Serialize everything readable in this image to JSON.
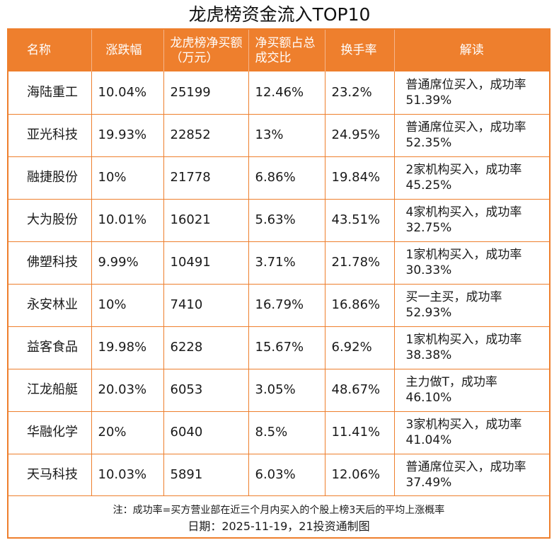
{
  "title": "龙虎榜资金流入TOP10",
  "columns": {
    "name": "名称",
    "change": "涨跌幅",
    "net_buy": "龙虎榜净买额（万元）",
    "ratio": "净买额占总成交比",
    "turnover": "换手率",
    "interpret": "解读"
  },
  "rows": [
    {
      "name": "海陆重工",
      "change": "10.04%",
      "net_buy": "25199",
      "ratio": "12.46%",
      "turnover": "23.2%",
      "interpret": "普通席位买入，成功率51.39%"
    },
    {
      "name": "亚光科技",
      "change": "19.93%",
      "net_buy": "22852",
      "ratio": "13%",
      "turnover": "24.95%",
      "interpret": "普通席位买入，成功率52.35%"
    },
    {
      "name": "融捷股份",
      "change": "10%",
      "net_buy": "21778",
      "ratio": "6.86%",
      "turnover": "19.84%",
      "interpret": "2家机构买入，成功率45.25%"
    },
    {
      "name": "大为股份",
      "change": "10.01%",
      "net_buy": "16021",
      "ratio": "5.63%",
      "turnover": "43.51%",
      "interpret": "4家机构买入，成功率32.75%"
    },
    {
      "name": "佛塑科技",
      "change": "9.99%",
      "net_buy": "10491",
      "ratio": "3.71%",
      "turnover": "21.78%",
      "interpret": "1家机构买入，成功率30.33%"
    },
    {
      "name": "永安林业",
      "change": "10%",
      "net_buy": "7410",
      "ratio": "16.79%",
      "turnover": "16.86%",
      "interpret": "买一主买，成功率52.93%"
    },
    {
      "name": "益客食品",
      "change": "19.98%",
      "net_buy": "6228",
      "ratio": "15.67%",
      "turnover": "6.92%",
      "interpret": "1家机构买入，成功率38.38%"
    },
    {
      "name": "江龙船艇",
      "change": "20.03%",
      "net_buy": "6053",
      "ratio": "3.05%",
      "turnover": "48.67%",
      "interpret": "主力做T，成功率46.10%"
    },
    {
      "name": "华融化学",
      "change": "20%",
      "net_buy": "6040",
      "ratio": "8.5%",
      "turnover": "11.41%",
      "interpret": "3家机构买入，成功率41.04%"
    },
    {
      "name": "天马科技",
      "change": "10.03%",
      "net_buy": "5891",
      "ratio": "6.03%",
      "turnover": "12.06%",
      "interpret": "普通席位买入，成功率37.49%"
    }
  ],
  "footer": {
    "note": "注：成功率=买方营业部在近三个月内买入的个股上榜3天后的平均上涨概率",
    "date": "日期：2025-11-19，21投资通制图"
  },
  "colors": {
    "accent": "#ee7f2d",
    "header_text": "#ffffff",
    "body_text": "#1a1a1a"
  }
}
